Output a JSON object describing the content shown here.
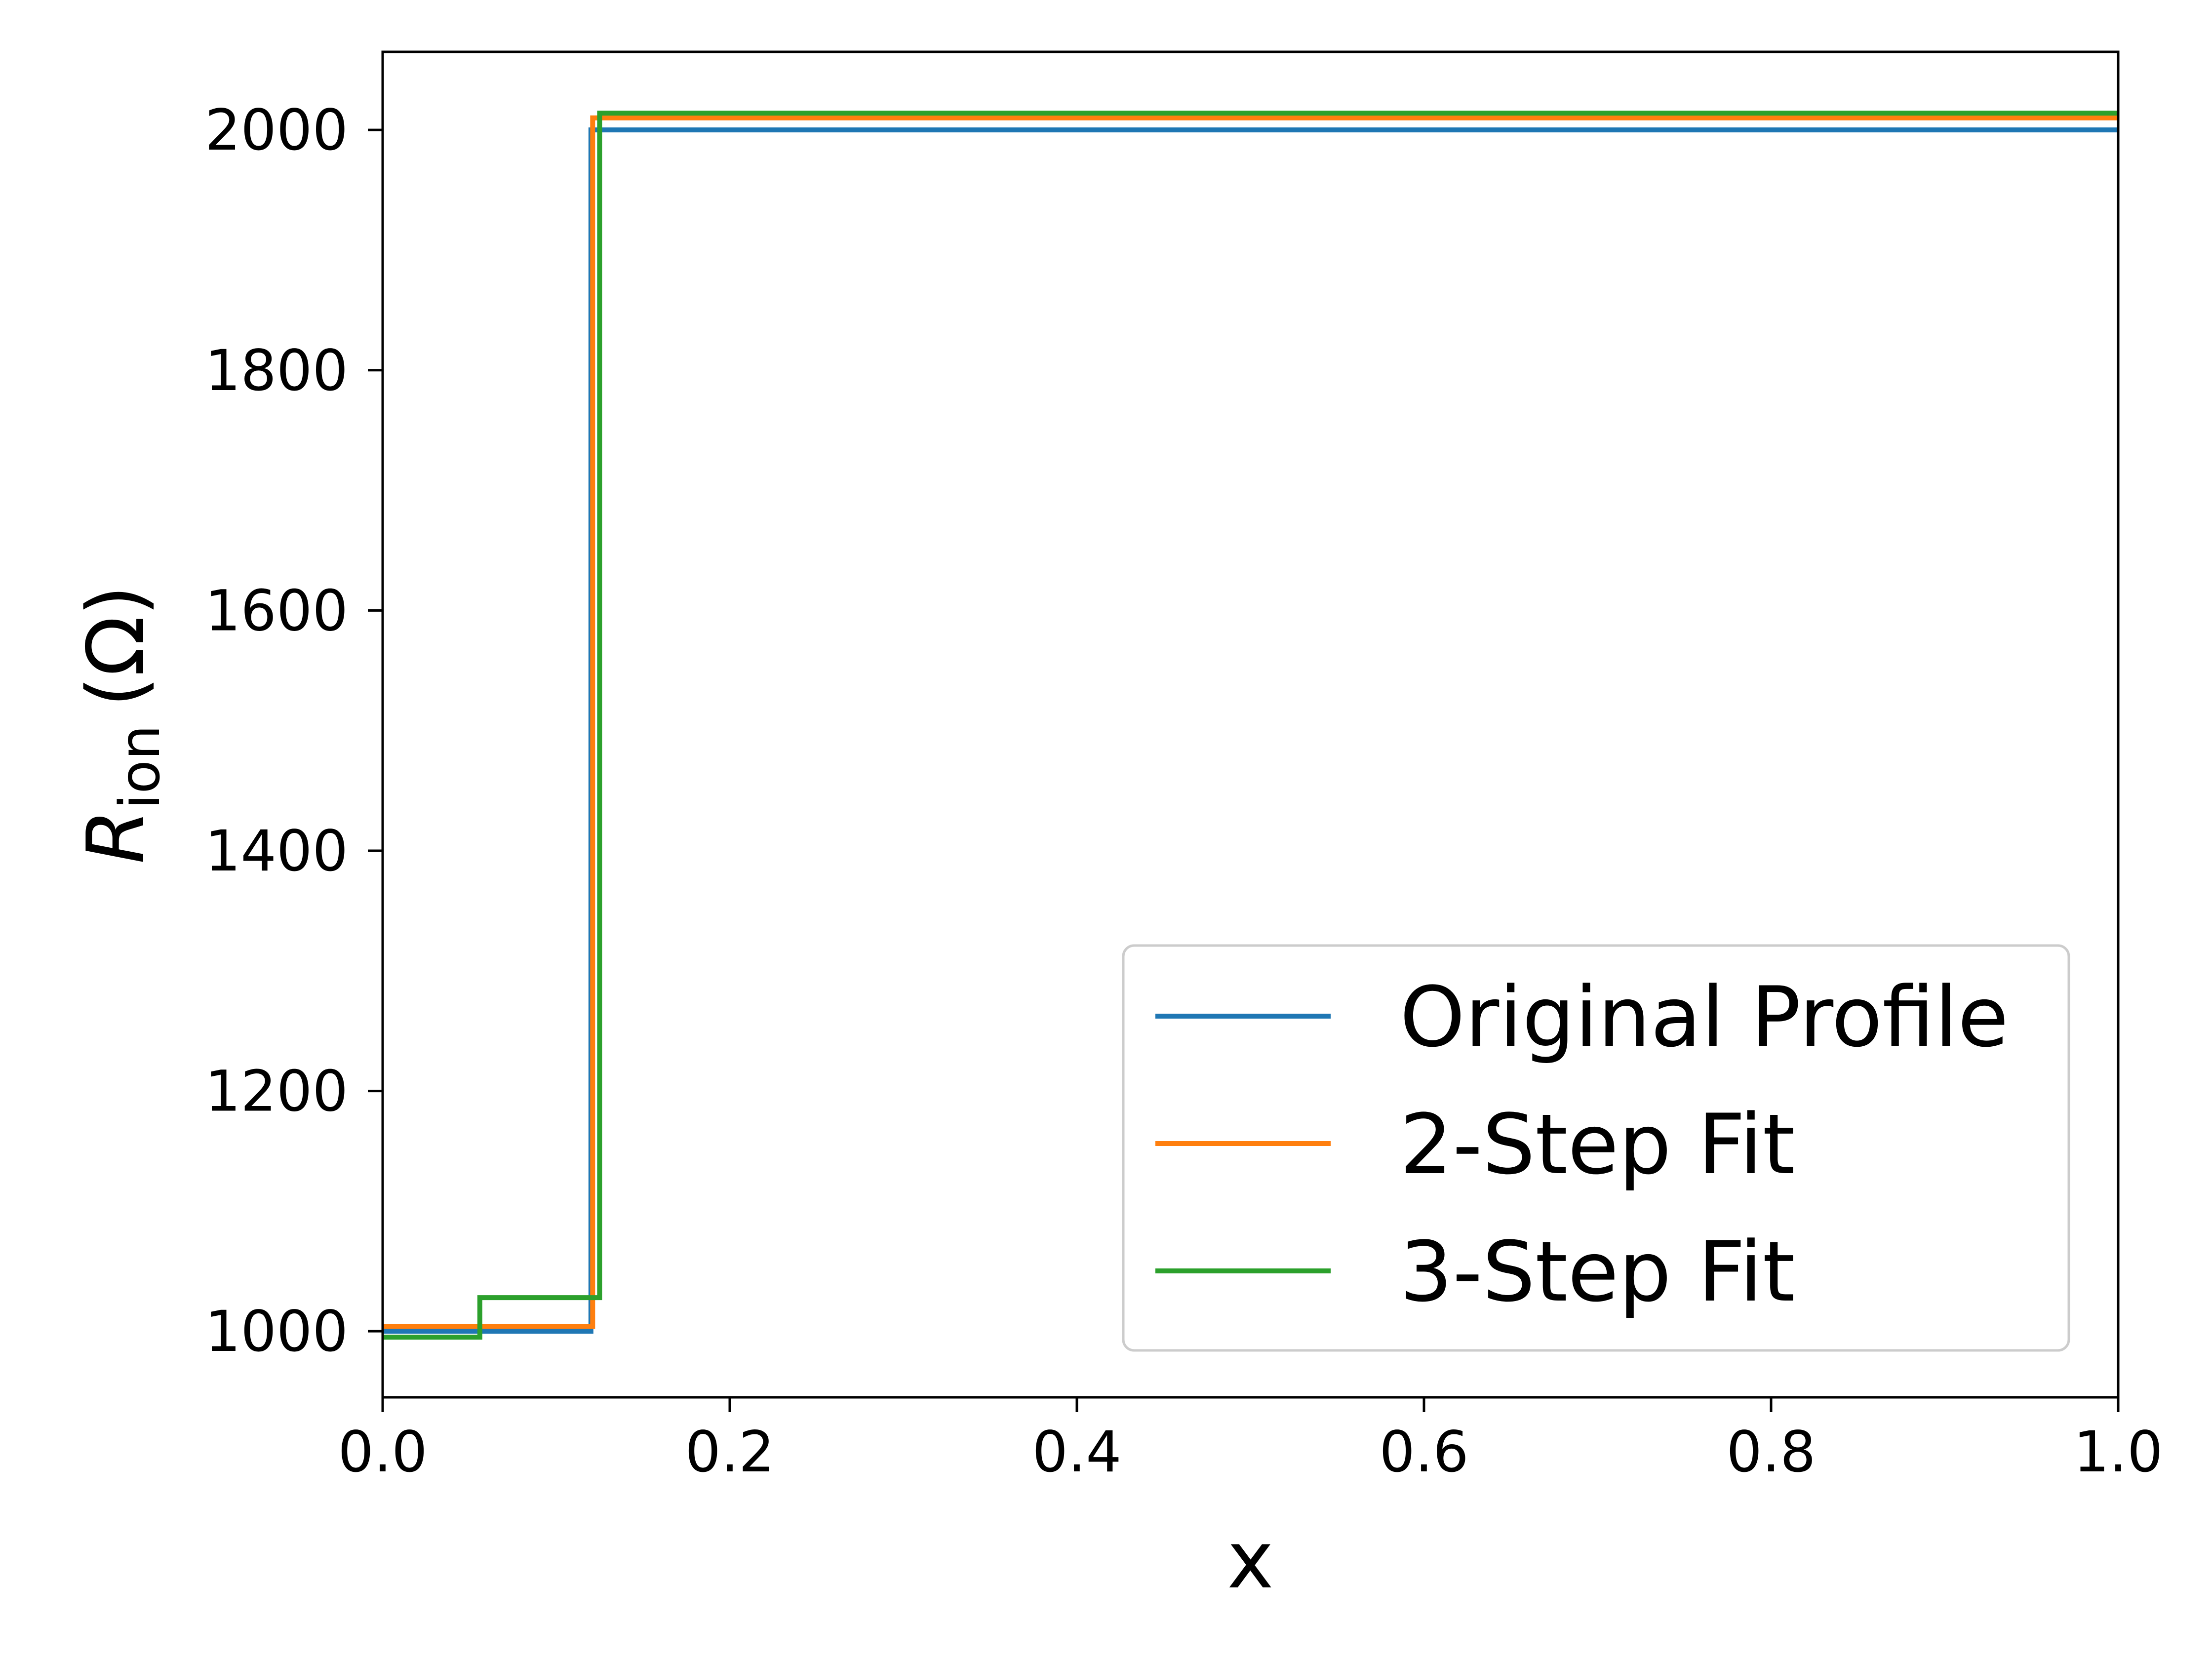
{
  "chart_data": {
    "type": "line",
    "title": "",
    "xlabel": "x",
    "ylabel": {
      "main": "R",
      "sub": "ion",
      "unit": "(Ω)"
    },
    "xlim": [
      0.0,
      1.0
    ],
    "ylim": [
      945,
      2065
    ],
    "x_ticks": [
      0.0,
      0.2,
      0.4,
      0.6,
      0.8,
      1.0
    ],
    "x_tick_labels": [
      "0.0",
      "0.2",
      "0.4",
      "0.6",
      "0.8",
      "1.0"
    ],
    "y_ticks": [
      1000,
      1200,
      1400,
      1600,
      1800,
      2000
    ],
    "y_tick_labels": [
      "1000",
      "1200",
      "1400",
      "1600",
      "1800",
      "2000"
    ],
    "grid": false,
    "legend_position": "lower-right",
    "step": "post",
    "series": [
      {
        "name": "Original Profile",
        "color": "#1f77b4",
        "x": [
          0.0,
          0.12,
          1.0
        ],
        "y": [
          1000,
          2000,
          2000
        ]
      },
      {
        "name": "2-Step Fit",
        "color": "#ff7f0e",
        "x": [
          0.0,
          0.121,
          1.0
        ],
        "y": [
          1004,
          2010,
          2010
        ]
      },
      {
        "name": "3-Step Fit",
        "color": "#2ca02c",
        "x": [
          0.0,
          0.056,
          0.125,
          1.0
        ],
        "y": [
          995,
          1028,
          2014,
          2014
        ]
      }
    ]
  }
}
